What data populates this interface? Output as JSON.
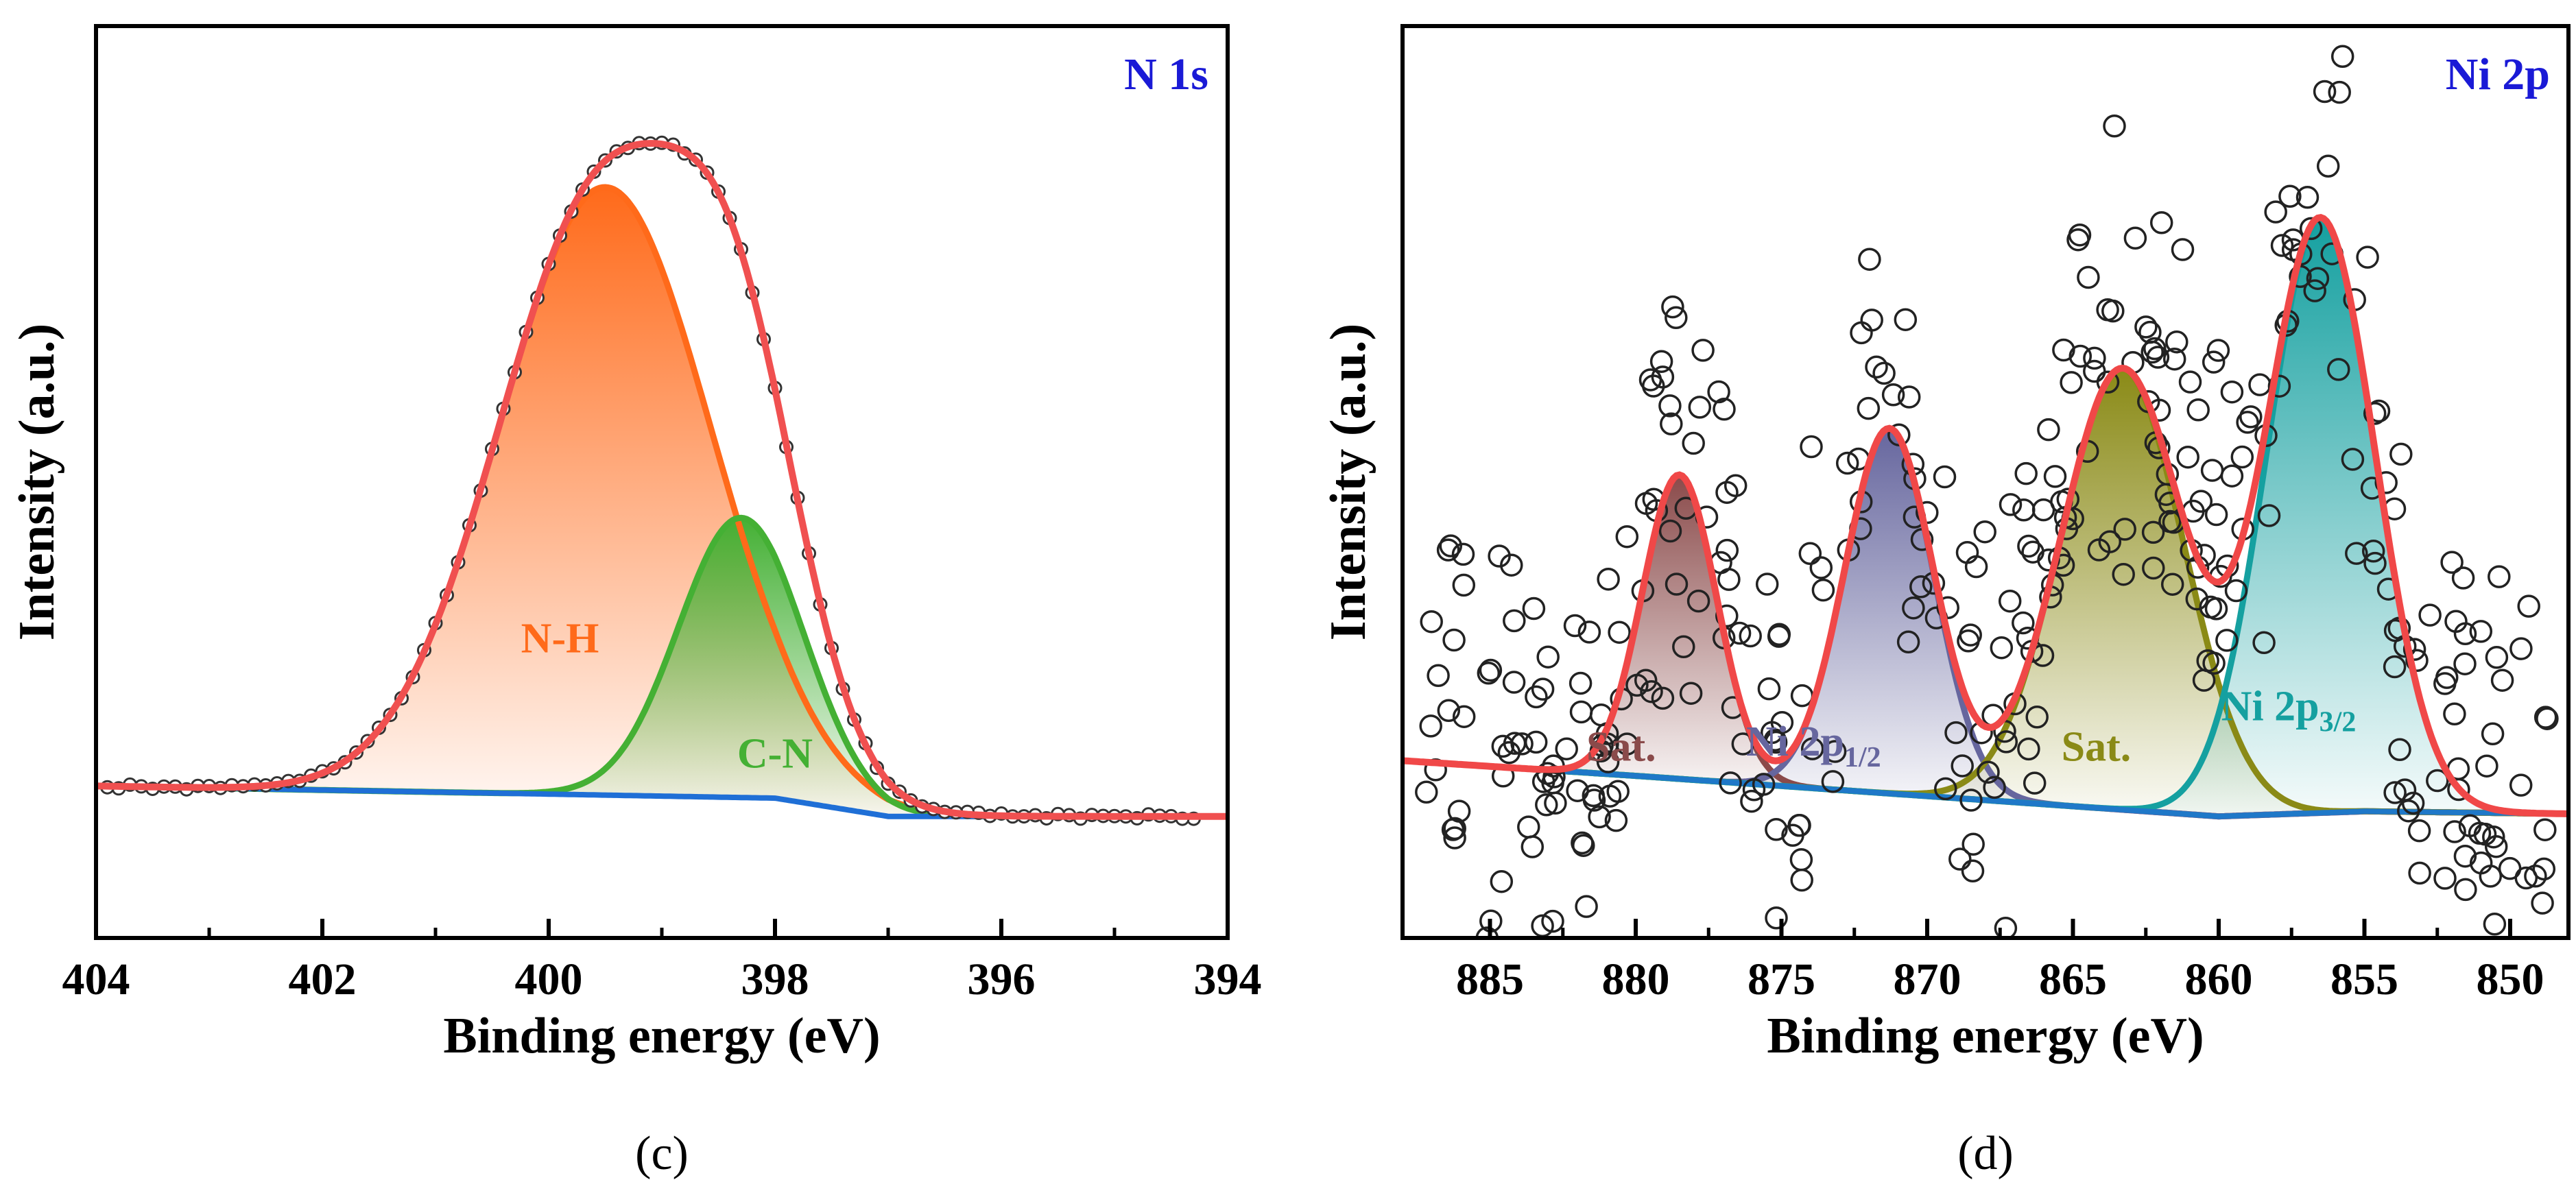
{
  "chart_data": [
    {
      "type": "scatter",
      "panel": "c",
      "title": "N 1s",
      "xlabel": "Binding energy (eV)",
      "ylabel": "Intensity (a.u.)",
      "xlim": [
        404,
        394
      ],
      "ylim": [
        -0.2,
        1.3
      ],
      "x_reversed": true,
      "xticks": [
        404,
        402,
        400,
        398,
        396,
        394
      ],
      "colors": {
        "title": "#1a1ad6",
        "data": "#333333",
        "envelope": "#f05050",
        "background": "#1f6fd6"
      },
      "background_line": {
        "name": "Background",
        "x": [
          404,
          398,
          397,
          394
        ],
        "y": [
          0.05,
          0.03,
          0.0,
          0.0
        ]
      },
      "envelope": {
        "name": "Fit envelope",
        "color": "#f05050"
      },
      "components": [
        {
          "name": "N-H",
          "label": "N-H",
          "center": 399.5,
          "fwhm": 2.2,
          "height": 1.0,
          "color": "#ff6a1a",
          "label_pos": [
            399.9,
            0.27
          ]
        },
        {
          "name": "C-N",
          "label": "C-N",
          "center": 398.3,
          "fwhm": 1.3,
          "height": 0.46,
          "color": "#44b034",
          "label_pos": [
            398.0,
            0.08
          ]
        }
      ],
      "data_points": {
        "x_min": 394.3,
        "x_max": 403.9,
        "step": 0.1,
        "noise": 0.004
      }
    },
    {
      "type": "scatter",
      "panel": "d",
      "title": "Ni 2p",
      "xlabel": "Binding energy (eV)",
      "ylabel": "Intensity (a.u.)",
      "xlim": [
        888,
        848
      ],
      "ylim": [
        -0.25,
        1.55
      ],
      "x_reversed": true,
      "xticks": [
        885,
        880,
        875,
        870,
        865,
        860,
        855,
        850
      ],
      "colors": {
        "title": "#1a1ad6",
        "data": "#333333",
        "envelope": "#f04848",
        "background": "#1f78c8"
      },
      "background_line": {
        "name": "Background",
        "x": [
          888,
          880,
          870,
          860,
          855,
          848
        ],
        "y": [
          0.1,
          0.07,
          0.03,
          -0.01,
          0.0,
          -0.005
        ]
      },
      "envelope": {
        "name": "Fit envelope",
        "color": "#f04848"
      },
      "components": [
        {
          "name": "Sat.",
          "label": "Sat.",
          "center": 878.5,
          "fwhm": 3.0,
          "height": 0.6,
          "color": "#8a4a4a",
          "label_pos": [
            880.5,
            0.1
          ]
        },
        {
          "name": "Ni 2p1/2",
          "label": "Ni 2p",
          "sub": "1/2",
          "center": 871.3,
          "fwhm": 3.6,
          "height": 0.72,
          "color": "#66669e",
          "label_pos": [
            873.9,
            0.11
          ]
        },
        {
          "name": "Sat.",
          "label": "Sat.",
          "center": 863.3,
          "fwhm": 5.0,
          "height": 0.87,
          "color": "#8a8a16",
          "label_pos": [
            864.2,
            0.1
          ]
        },
        {
          "name": "Ni 2p3/2",
          "label": "Ni 2p",
          "sub": "3/2",
          "center": 856.5,
          "fwhm": 4.4,
          "height": 1.17,
          "color": "#15a0a0",
          "label_pos": [
            857.6,
            0.18
          ]
        }
      ],
      "data_points": {
        "x_min": 848.5,
        "x_max": 887.5,
        "count": 380,
        "noise": 0.45
      }
    }
  ],
  "panels": [
    {
      "label_text": "(c)",
      "title": "N 1s",
      "ylabel": "Intensity (a.u.)",
      "xlabel": "Binding energy (eV)"
    },
    {
      "label_text": "(d)",
      "title": "Ni 2p",
      "ylabel": "Intensity (a.u.)",
      "xlabel": "Binding energy (eV)"
    }
  ]
}
